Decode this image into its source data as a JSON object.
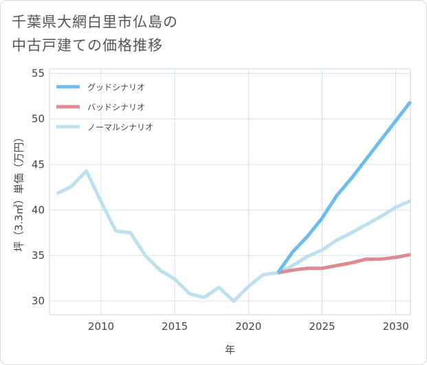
{
  "title_line1": "千葉県大網白里市仏島の",
  "title_line2": "中古戸建ての価格推移",
  "chart_data": {
    "type": "line",
    "xlabel": "年",
    "ylabel": "坪（3.3㎡）単価（万円）",
    "xlim": [
      2006.5,
      2031
    ],
    "ylim": [
      28.5,
      55.5
    ],
    "x_ticks": [
      2010,
      2015,
      2020,
      2025,
      2030
    ],
    "y_ticks": [
      30,
      35,
      40,
      45,
      50,
      55
    ],
    "grid": true,
    "legend_position": "top-left",
    "series": [
      {
        "name": "グッドシナリオ",
        "color": "#6cbcec",
        "x": [
          2022,
          2023,
          2024,
          2025,
          2026,
          2027,
          2028,
          2029,
          2030,
          2031
        ],
        "y": [
          33.1,
          35.4,
          37.1,
          39.1,
          41.6,
          43.5,
          45.6,
          47.7,
          49.8,
          51.9
        ]
      },
      {
        "name": "バッドシナリオ",
        "color": "#de8a8f",
        "x": [
          2022,
          2023,
          2024,
          2025,
          2026,
          2027,
          2028,
          2029,
          2030,
          2031
        ],
        "y": [
          33.1,
          33.4,
          33.6,
          33.6,
          33.9,
          34.2,
          34.6,
          34.6,
          34.8,
          35.1
        ]
      },
      {
        "name": "ノーマルシナリオ",
        "color": "#bde0f0",
        "x": [
          2007,
          2008,
          2009,
          2010,
          2011,
          2012,
          2013,
          2014,
          2015,
          2016,
          2017,
          2018,
          2019,
          2020,
          2021,
          2022,
          2023,
          2024,
          2025,
          2026,
          2027,
          2028,
          2029,
          2030,
          2031
        ],
        "y": [
          41.8,
          42.6,
          44.3,
          40.9,
          37.7,
          37.5,
          35.0,
          33.4,
          32.4,
          30.8,
          30.4,
          31.5,
          30.0,
          31.6,
          32.9,
          33.1,
          33.9,
          34.9,
          35.6,
          36.7,
          37.5,
          38.4,
          39.3,
          40.3,
          41.0
        ]
      }
    ]
  }
}
